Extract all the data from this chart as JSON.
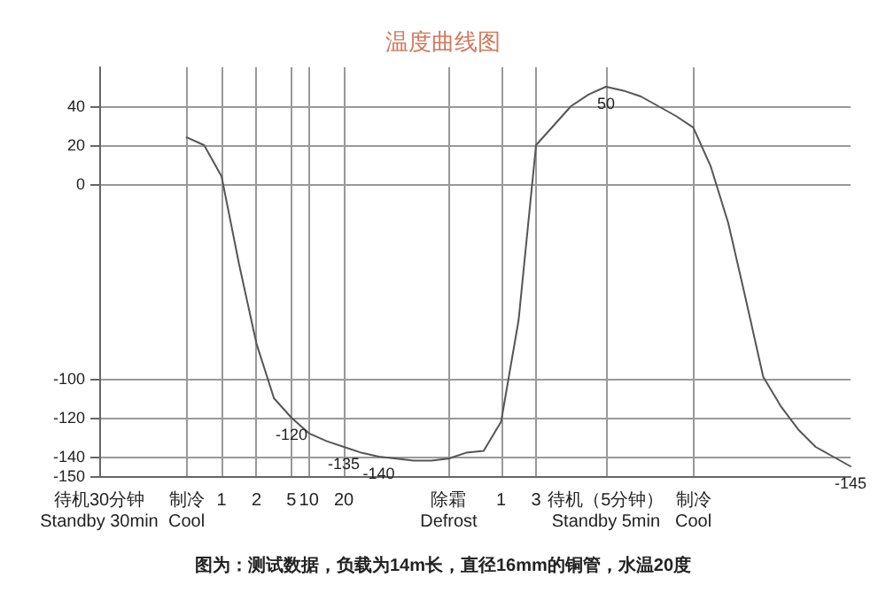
{
  "chart_data": {
    "type": "line",
    "title": "温度曲线图",
    "categories": [
      "待机30分钟\nStandby 30min",
      null,
      null,
      null,
      null,
      "制冷\nCool",
      null,
      "1",
      null,
      "2",
      null,
      "5",
      "10",
      null,
      "20",
      null,
      null,
      null,
      null,
      null,
      "除霜\nDefrost",
      null,
      null,
      "1",
      null,
      "3",
      null,
      null,
      null,
      "待机（5分钟）\nStandby 5min",
      null,
      null,
      null,
      null,
      "制冷\nCool",
      null,
      null,
      null,
      null,
      null,
      null,
      null,
      null,
      null
    ],
    "series": [
      {
        "color": "#555555",
        "values": [
          null,
          null,
          null,
          null,
          null,
          24,
          20,
          4,
          -41,
          -82,
          -110,
          -120,
          -128,
          -132,
          -135,
          -138,
          -140,
          -141,
          -142,
          -142,
          -141,
          -138,
          -137,
          -122,
          -70,
          20,
          30,
          40,
          46,
          50,
          48,
          45,
          40,
          35,
          29,
          9,
          -20,
          -59,
          -99,
          -114,
          -126,
          -135,
          -140,
          -145
        ],
        "value_labels": [
          null,
          null,
          null,
          null,
          null,
          null,
          null,
          null,
          null,
          null,
          null,
          "-120",
          null,
          null,
          "-135",
          null,
          "-140",
          null,
          null,
          null,
          null,
          null,
          null,
          null,
          null,
          null,
          null,
          null,
          null,
          "50",
          null,
          null,
          null,
          null,
          null,
          null,
          null,
          null,
          null,
          null,
          null,
          null,
          null,
          "-145"
        ]
      }
    ],
    "ylim": [
      -150,
      60
    ],
    "yticks": [
      40,
      20,
      0,
      -100,
      -120,
      -140,
      -150
    ],
    "grid": true,
    "marker": "none",
    "line_style": "solid",
    "annotations": [
      "图为：测试数据，负载为14m长，直径16mm的铜管，水温20度"
    ]
  }
}
